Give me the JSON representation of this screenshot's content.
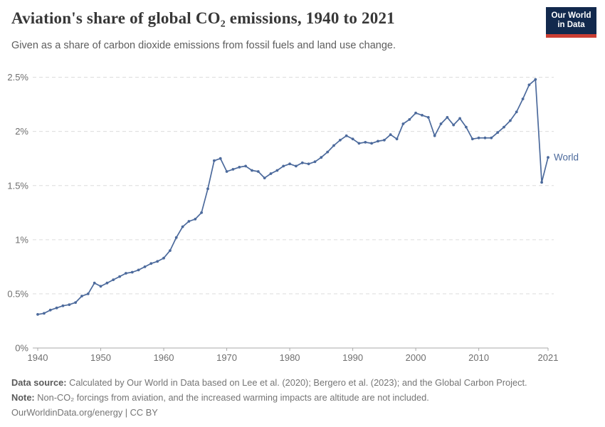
{
  "header": {
    "title": "Aviation's share of global CO₂ emissions, 1940 to 2021",
    "subtitle": "Given as a share of carbon dioxide emissions from fossil fuels and land use change.",
    "logo": {
      "line1": "Our World",
      "line2": "in Data",
      "bg_color": "#12294d",
      "accent_color": "#cb3e33"
    }
  },
  "chart_data": {
    "type": "line",
    "title": "Aviation's share of global CO₂ emissions, 1940 to 2021",
    "xlabel": "",
    "ylabel": "",
    "ylim": [
      0,
      2.5
    ],
    "grid": "horizontal-dashed",
    "legend_position": "end-of-line-label",
    "end_label": "World",
    "line_color": "#4c6a9c",
    "grid_color": "#dcdcdc",
    "axis_color": "#a8a8a8",
    "tick_label_color": "#6f6f6f",
    "yticks": [
      {
        "value": 0,
        "label": "0%"
      },
      {
        "value": 0.5,
        "label": "0.5%"
      },
      {
        "value": 1,
        "label": "1%"
      },
      {
        "value": 1.5,
        "label": "1.5%"
      },
      {
        "value": 2,
        "label": "2%"
      },
      {
        "value": 2.5,
        "label": "2.5%"
      }
    ],
    "xticks": [
      1940,
      1950,
      1960,
      1970,
      1980,
      1990,
      2000,
      2010,
      2021
    ],
    "x": [
      1940,
      1941,
      1942,
      1943,
      1944,
      1945,
      1946,
      1947,
      1948,
      1949,
      1950,
      1951,
      1952,
      1953,
      1954,
      1955,
      1956,
      1957,
      1958,
      1959,
      1960,
      1961,
      1962,
      1963,
      1964,
      1965,
      1966,
      1967,
      1968,
      1969,
      1970,
      1971,
      1972,
      1973,
      1974,
      1975,
      1976,
      1977,
      1978,
      1979,
      1980,
      1981,
      1982,
      1983,
      1984,
      1985,
      1986,
      1987,
      1988,
      1989,
      1990,
      1991,
      1992,
      1993,
      1994,
      1995,
      1996,
      1997,
      1998,
      1999,
      2000,
      2001,
      2002,
      2003,
      2004,
      2005,
      2006,
      2007,
      2008,
      2009,
      2010,
      2011,
      2012,
      2013,
      2014,
      2015,
      2016,
      2017,
      2018,
      2019,
      2020,
      2021
    ],
    "series": [
      {
        "name": "World",
        "color": "#4c6a9c",
        "values": [
          0.31,
          0.32,
          0.35,
          0.37,
          0.39,
          0.4,
          0.42,
          0.48,
          0.5,
          0.6,
          0.57,
          0.6,
          0.63,
          0.66,
          0.69,
          0.7,
          0.72,
          0.75,
          0.78,
          0.8,
          0.83,
          0.9,
          1.02,
          1.12,
          1.17,
          1.19,
          1.25,
          1.47,
          1.73,
          1.75,
          1.63,
          1.65,
          1.67,
          1.68,
          1.64,
          1.63,
          1.57,
          1.61,
          1.64,
          1.68,
          1.7,
          1.68,
          1.71,
          1.7,
          1.72,
          1.76,
          1.81,
          1.87,
          1.92,
          1.96,
          1.93,
          1.89,
          1.9,
          1.89,
          1.91,
          1.92,
          1.97,
          1.93,
          2.07,
          2.11,
          2.17,
          2.15,
          2.13,
          1.96,
          2.07,
          2.13,
          2.06,
          2.12,
          2.04,
          1.93,
          1.94,
          1.94,
          1.94,
          1.99,
          2.04,
          2.1,
          2.18,
          2.3,
          2.43,
          2.48,
          1.53,
          1.76
        ]
      }
    ]
  },
  "footer": {
    "data_source_label": "Data source:",
    "data_source_text": " Calculated by Our World in Data based on Lee et al. (2020); Bergero et al. (2023); and the Global Carbon Project.",
    "note_label": "Note:",
    "note_text": " Non-CO₂ forcings from aviation, and the increased warming impacts are altitude are not included.",
    "citation": "OurWorldinData.org/energy | CC BY"
  }
}
